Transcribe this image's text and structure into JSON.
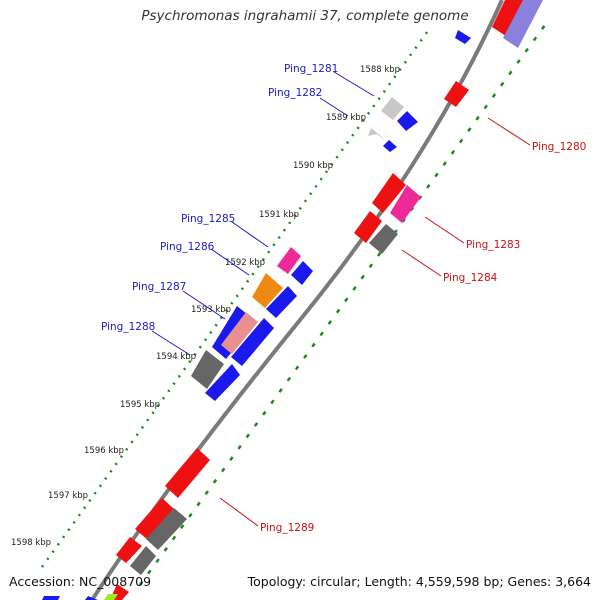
{
  "title": "Psychromonas ingrahamii 37, complete genome",
  "accession": "Accession: NC_008709",
  "topology": "Topology: circular; Length: 4,559,598 bp; Genes: 3,664",
  "colors": {
    "backbone": "#7a7a7a",
    "tick": "#1a8a1a",
    "label_left": "#1a1acc",
    "label_right": "#cc1111",
    "red": "#ee1111",
    "blue": "#1a1aee",
    "gray": "#666666",
    "lightgray": "#c8c8c8",
    "pink": "#ee2a99",
    "orange": "#ee8a11",
    "salmon": "#e89090",
    "lavender": "#8a80dd",
    "green": "#99ee22"
  },
  "kbp_labels": [
    "1588 kbp",
    "1589 kbp",
    "1590 kbp",
    "1591 kbp",
    "1592 kbp",
    "1593 kbp",
    "1594 kbp",
    "1595 kbp",
    "1596 kbp",
    "1597 kbp",
    "1598 kbp"
  ],
  "gene_labels_left": [
    "Ping_1281",
    "Ping_1282",
    "Ping_1285",
    "Ping_1286",
    "Ping_1287",
    "Ping_1288"
  ],
  "gene_labels_right": [
    "Ping_1280",
    "Ping_1283",
    "Ping_1284",
    "Ping_1289"
  ]
}
